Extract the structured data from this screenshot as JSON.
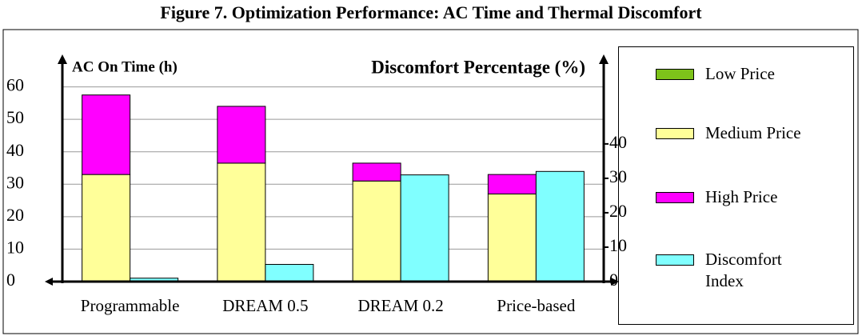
{
  "chart_data": {
    "type": "bar",
    "stacked": true,
    "title": "Figure 7. Optimization Performance: AC Time and Thermal Discomfort",
    "y_label": "AC On Time (h)",
    "y2_label": "Discomfort Percentage (%)",
    "categories": [
      "Programmable",
      "DREAM 0.5",
      "DREAM 0.2",
      "Price-based"
    ],
    "series": [
      {
        "name": "Low Price",
        "color": "#7dc31a",
        "values": [
          0,
          0,
          0,
          0
        ]
      },
      {
        "name": "Medium Price",
        "color": "#ffff99",
        "values": [
          33,
          36.5,
          31,
          27
        ]
      },
      {
        "name": "High Price",
        "color": "#ff00ff",
        "values": [
          24.5,
          17.5,
          5.5,
          6
        ]
      },
      {
        "name": "Discomfort Index",
        "color": "#80ffff",
        "axis": "y2",
        "values": [
          1,
          5,
          31,
          32
        ]
      }
    ],
    "ylim": [
      0,
      70
    ],
    "yticks": [
      0,
      10,
      20,
      30,
      40,
      50,
      60
    ],
    "y2lim": [
      0,
      66
    ],
    "y2ticks": [
      0,
      10,
      20,
      30,
      40
    ],
    "grid": true,
    "legend": "right"
  }
}
